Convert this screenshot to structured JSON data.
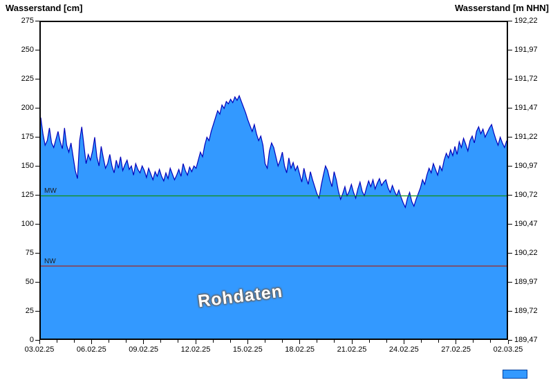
{
  "header": {
    "left_title": "Wasserstand [cm]",
    "right_title": "Wasserstand [m NHN]"
  },
  "chart_data": {
    "type": "area",
    "title": "",
    "ylabel_left": "Wasserstand [cm]",
    "ylabel_right": "Wasserstand [m NHN]",
    "ylim_cm": [
      0,
      275
    ],
    "ylim_mnhn": [
      189.47,
      192.22
    ],
    "grid": false,
    "legend": "none",
    "y_ticks_cm": [
      275,
      250,
      225,
      200,
      175,
      150,
      125,
      100,
      75,
      50,
      25,
      0
    ],
    "y_tick_labels_right": [
      "192,22",
      "191,97",
      "191,72",
      "191,47",
      "191,22",
      "190,97",
      "190,72",
      "190,47",
      "190,22",
      "189,97",
      "189,72",
      "189,47"
    ],
    "x_tick_labels": [
      "03.02.25",
      "06.02.25",
      "09.02.25",
      "12.02.25",
      "15.02.25",
      "18.02.25",
      "21.02.25",
      "24.02.25",
      "27.02.25",
      "02.03.25"
    ],
    "x_days_total": 27,
    "x_minor_tick_every_days": 1,
    "samples_per_day": 8,
    "series": [
      {
        "name": "Wasserstand Rohdaten",
        "unit": "cm",
        "values": [
          192,
          178,
          168,
          172,
          183,
          170,
          166,
          173,
          180,
          171,
          165,
          183,
          168,
          162,
          170,
          158,
          146,
          139,
          172,
          184,
          168,
          152,
          160,
          155,
          163,
          175,
          158,
          150,
          167,
          157,
          148,
          152,
          160,
          150,
          144,
          155,
          148,
          158,
          146,
          151,
          155,
          147,
          150,
          142,
          152,
          147,
          144,
          150,
          146,
          140,
          148,
          143,
          138,
          145,
          141,
          147,
          141,
          137,
          144,
          139,
          148,
          143,
          138,
          142,
          147,
          141,
          152,
          146,
          142,
          149,
          145,
          150,
          148,
          155,
          162,
          158,
          168,
          175,
          172,
          180,
          186,
          192,
          198,
          195,
          203,
          200,
          206,
          204,
          208,
          205,
          210,
          207,
          211,
          206,
          201,
          196,
          190,
          185,
          180,
          186,
          178,
          172,
          176,
          168,
          152,
          148,
          163,
          170,
          166,
          158,
          150,
          155,
          162,
          150,
          144,
          157,
          148,
          153,
          146,
          150,
          143,
          136,
          148,
          140,
          134,
          145,
          138,
          132,
          126,
          122,
          133,
          142,
          150,
          146,
          138,
          132,
          145,
          138,
          128,
          121,
          126,
          132,
          124,
          128,
          134,
          127,
          122,
          130,
          136,
          128,
          124,
          131,
          137,
          132,
          138,
          130,
          135,
          139,
          133,
          136,
          138,
          131,
          127,
          133,
          128,
          124,
          129,
          123,
          118,
          114,
          122,
          127,
          119,
          115,
          121,
          126,
          131,
          138,
          134,
          142,
          148,
          144,
          152,
          147,
          142,
          150,
          146,
          155,
          161,
          157,
          164,
          159,
          167,
          160,
          171,
          166,
          174,
          169,
          163,
          172,
          176,
          170,
          180,
          184,
          178,
          182,
          175,
          179,
          183,
          186,
          179,
          173,
          168,
          175,
          170,
          166,
          172
        ]
      }
    ],
    "thresholds": [
      {
        "label": "MW",
        "value_cm": 124,
        "color": "#109010"
      },
      {
        "label": "NW",
        "value_cm": 63,
        "color": "#993333"
      }
    ],
    "watermark": "Rohdaten",
    "colors": {
      "area_fill": "#3399ff",
      "line": "#0000bb",
      "axis": "#000000",
      "scroll_thumb": "#3399ff"
    }
  }
}
